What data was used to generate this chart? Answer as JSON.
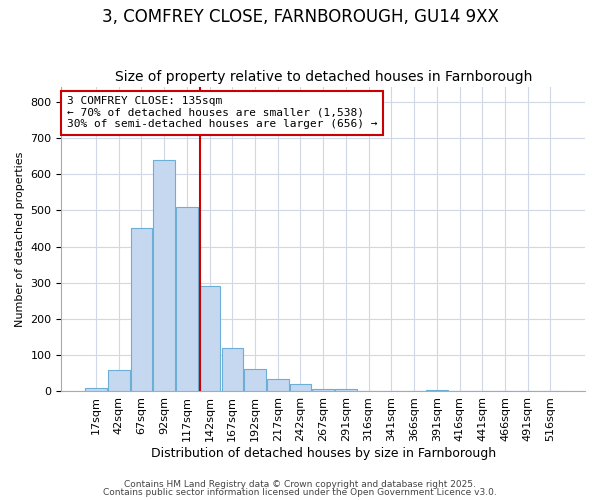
{
  "title1": "3, COMFREY CLOSE, FARNBOROUGH, GU14 9XX",
  "title2": "Size of property relative to detached houses in Farnborough",
  "xlabel": "Distribution of detached houses by size in Farnborough",
  "ylabel": "Number of detached properties",
  "bar_labels": [
    "17sqm",
    "42sqm",
    "67sqm",
    "92sqm",
    "117sqm",
    "142sqm",
    "167sqm",
    "192sqm",
    "217sqm",
    "242sqm",
    "267sqm",
    "291sqm",
    "316sqm",
    "341sqm",
    "366sqm",
    "391sqm",
    "416sqm",
    "441sqm",
    "466sqm",
    "491sqm",
    "516sqm"
  ],
  "bar_values": [
    10,
    58,
    450,
    640,
    510,
    292,
    120,
    63,
    35,
    20,
    8,
    8,
    0,
    0,
    0,
    5,
    0,
    0,
    0,
    0,
    0
  ],
  "bar_color": "#c5d8f0",
  "bar_edge_color": "#6baed6",
  "background_color": "#ffffff",
  "grid_color": "#d0d8e8",
  "vline_x": 4.57,
  "vline_color": "#cc0000",
  "annotation_line1": "3 COMFREY CLOSE: 135sqm",
  "annotation_line2": "← 70% of detached houses are smaller (1,538)",
  "annotation_line3": "30% of semi-detached houses are larger (656) →",
  "annotation_box_color": "#ffffff",
  "annotation_box_edge": "#cc0000",
  "ylim": [
    0,
    840
  ],
  "yticks": [
    0,
    100,
    200,
    300,
    400,
    500,
    600,
    700,
    800
  ],
  "footer1": "Contains HM Land Registry data © Crown copyright and database right 2025.",
  "footer2": "Contains public sector information licensed under the Open Government Licence v3.0.",
  "title1_fontsize": 12,
  "title2_fontsize": 10,
  "xlabel_fontsize": 9,
  "ylabel_fontsize": 8,
  "tick_fontsize": 8,
  "annot_fontsize": 8,
  "footer_fontsize": 6.5
}
